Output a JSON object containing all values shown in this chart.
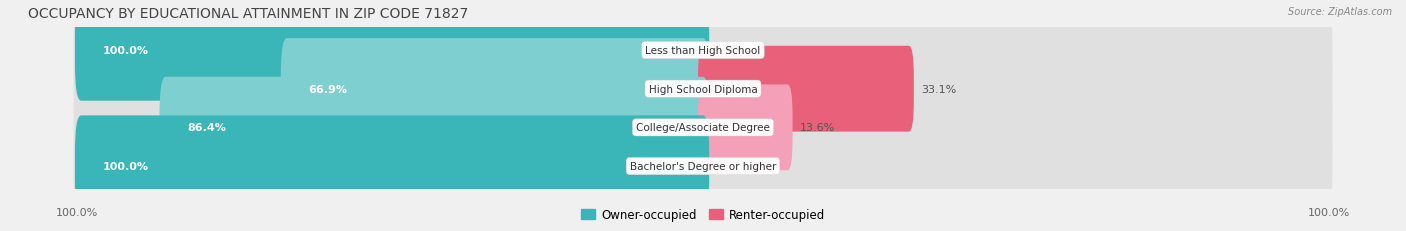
{
  "title": "OCCUPANCY BY EDUCATIONAL ATTAINMENT IN ZIP CODE 71827",
  "source": "Source: ZipAtlas.com",
  "categories": [
    "Less than High School",
    "High School Diploma",
    "College/Associate Degree",
    "Bachelor's Degree or higher"
  ],
  "owner_values": [
    100.0,
    66.9,
    86.4,
    100.0
  ],
  "renter_values": [
    0.0,
    33.1,
    13.6,
    0.0
  ],
  "owner_color_full": "#3ab5b8",
  "owner_color_partial": "#7ecfcf",
  "renter_color_full": "#e8607a",
  "renter_color_small": "#f4a0b8",
  "bar_bg_color": "#e0e0e0",
  "background_color": "#f0f0f0",
  "title_fontsize": 10,
  "label_fontsize": 8,
  "legend_fontsize": 8.5,
  "axis_label_fontsize": 8,
  "left_axis_label": "100.0%",
  "right_axis_label": "100.0%"
}
